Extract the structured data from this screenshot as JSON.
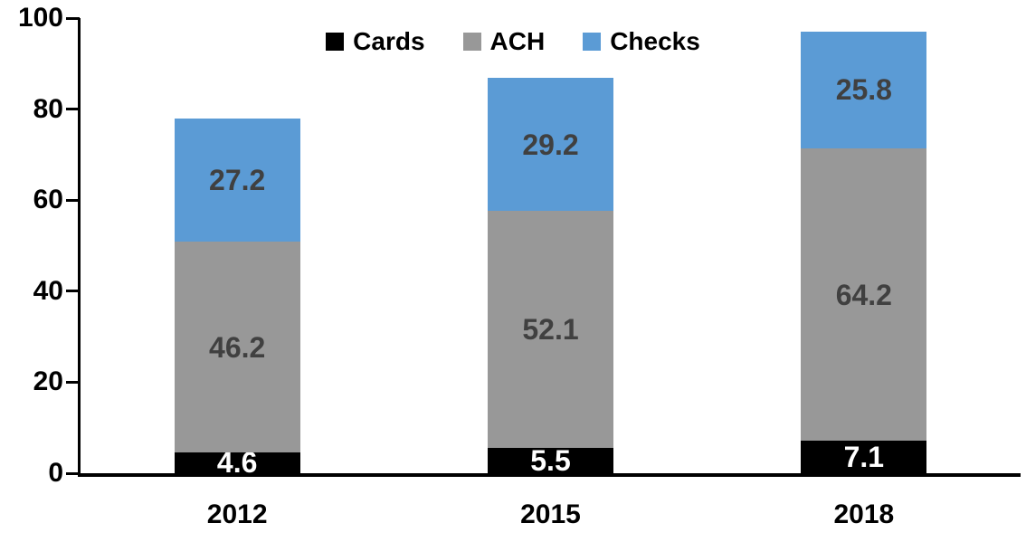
{
  "figure": {
    "background_color": "#FFFFFF",
    "axis_color": "#000000",
    "tick_label_color": "#000000"
  },
  "legend": {
    "position": "top-center",
    "items": [
      {
        "label": "Cards",
        "color": "#000000"
      },
      {
        "label": "ACH",
        "color": "#989898"
      },
      {
        "label": "Checks",
        "color": "#5B9BD5"
      }
    ]
  },
  "chart_data": {
    "type": "bar",
    "stacked": true,
    "title": "",
    "xlabel": "",
    "ylabel": "",
    "categories": [
      "2012",
      "2015",
      "2018"
    ],
    "series": [
      {
        "name": "Cards",
        "color": "#000000",
        "label_color": "#FFFFFF",
        "values": [
          4.6,
          5.5,
          7.1
        ]
      },
      {
        "name": "ACH",
        "color": "#989898",
        "label_color": "#404040",
        "values": [
          46.2,
          52.1,
          64.2
        ]
      },
      {
        "name": "Checks",
        "color": "#5B9BD5",
        "label_color": "#404040",
        "values": [
          27.2,
          29.2,
          25.8
        ]
      }
    ],
    "totals": [
      78.0,
      86.8,
      97.1
    ],
    "ylim": [
      0,
      100
    ],
    "yticks": [
      0,
      20,
      40,
      60,
      80,
      100
    ],
    "grid": false,
    "data_labels": true,
    "legend_position": "top"
  }
}
